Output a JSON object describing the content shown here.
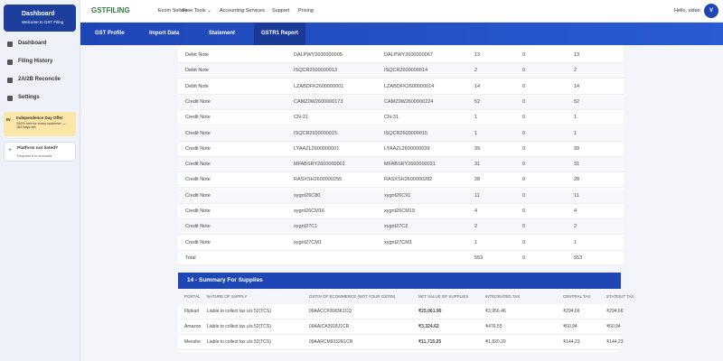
{
  "sidebar": {
    "brand": {
      "title": "Dashboard",
      "subtitle": "Welcome to GST Filing"
    },
    "menu": [
      "Dashboard",
      "Filing History",
      "2A/2B Reconcile",
      "Settings"
    ],
    "offer": {
      "badge": "IN",
      "title": "Independence Day Offer",
      "text": "100% free for every customer — 183 days left"
    },
    "request": {
      "title": "Platform not listed?",
      "text": "Request it in seconds"
    }
  },
  "topnav": {
    "logo": "GSTFILING",
    "links": [
      "Ecom Sellers",
      "Free Tools ⌄",
      "Accounting Services",
      "Support",
      "Pricing"
    ],
    "greeting": "Hello, vidan",
    "avatar": "V"
  },
  "tabs": [
    "GST Profile",
    "Import Data",
    "Statement",
    "GSTR1 Report"
  ],
  "table": {
    "rows": [
      [
        "Debit Note",
        "DALPWY2600000005",
        "DALPWY2600000067",
        "13",
        "0",
        "13"
      ],
      [
        "Debit Note",
        "ISQCR2600000013",
        "ISQCR2600000014",
        "2",
        "0",
        "2"
      ],
      [
        "Debit Note",
        "LZABDFK2600000001",
        "LZABDFK2600000014",
        "14",
        "0",
        "14"
      ],
      [
        "Credit Note",
        "CAMZ0W2600000173",
        "CAMZ0W2600000224",
        "52",
        "0",
        "52"
      ],
      [
        "Credit Note",
        "CN-31",
        "CN-31",
        "1",
        "0",
        "1"
      ],
      [
        "Credit Note",
        "ISQCR2600000015",
        "ISQCR2600000015",
        "1",
        "0",
        "1"
      ],
      [
        "Credit Note",
        "LYAAZL2600000001",
        "LYAAZL2600000039",
        "39",
        "0",
        "39"
      ],
      [
        "Credit Note",
        "MFABSRY2600000001",
        "MFABSRY2600000031",
        "31",
        "0",
        "31"
      ],
      [
        "Credit Note",
        "RASXSH2600000255",
        "RASXSH2600000282",
        "28",
        "0",
        "28"
      ],
      [
        "Credit Note",
        "xygnt26C80",
        "xygnt26C91",
        "11",
        "0",
        "11"
      ],
      [
        "Credit Note",
        "xygnt26CM16",
        "xygnt26CM19",
        "4",
        "0",
        "4"
      ],
      [
        "Credit Note",
        "xygnt27C1",
        "xygnt27C2",
        "2",
        "0",
        "2"
      ],
      [
        "Credit Note",
        "xygnt27CM1",
        "xygnt27CM1",
        "1",
        "0",
        "1"
      ]
    ],
    "total": {
      "label": "Total",
      "count": "553",
      "cancelled": "0",
      "net": "553"
    }
  },
  "summary": {
    "title": "14 - Summary For Supplies",
    "headers": [
      "PORTAL",
      "NATURE OF SUPPLY",
      "GSTIN OF ECOMMERCE (NOT YOUR GSTIN)",
      "NET VALUE OF SUPPLIES",
      "INTEGRATED TAX",
      "CENTRAL TAX",
      "STATE/UT TAX"
    ],
    "rows": [
      [
        "Flipkart",
        "Liable to collect tax u/s 52(TCS)",
        "09AACCF0683K1CQ",
        "₹25,061.90",
        "₹3,956.46",
        "₹294.66",
        "₹294.66"
      ],
      [
        "Amazon",
        "Liable to collect tax u/s 52(TCS)",
        "09AAICA3918J1CR",
        "₹3,324.62",
        "₹476.55",
        "₹60.94",
        "₹60.94"
      ],
      [
        "Meesho",
        "Liable to collect tax u/s 52(TCS)",
        "09AARCM9332R1CR",
        "₹11,715.25",
        "₹1,820.29",
        "₹144.23",
        "₹144.23"
      ]
    ]
  }
}
